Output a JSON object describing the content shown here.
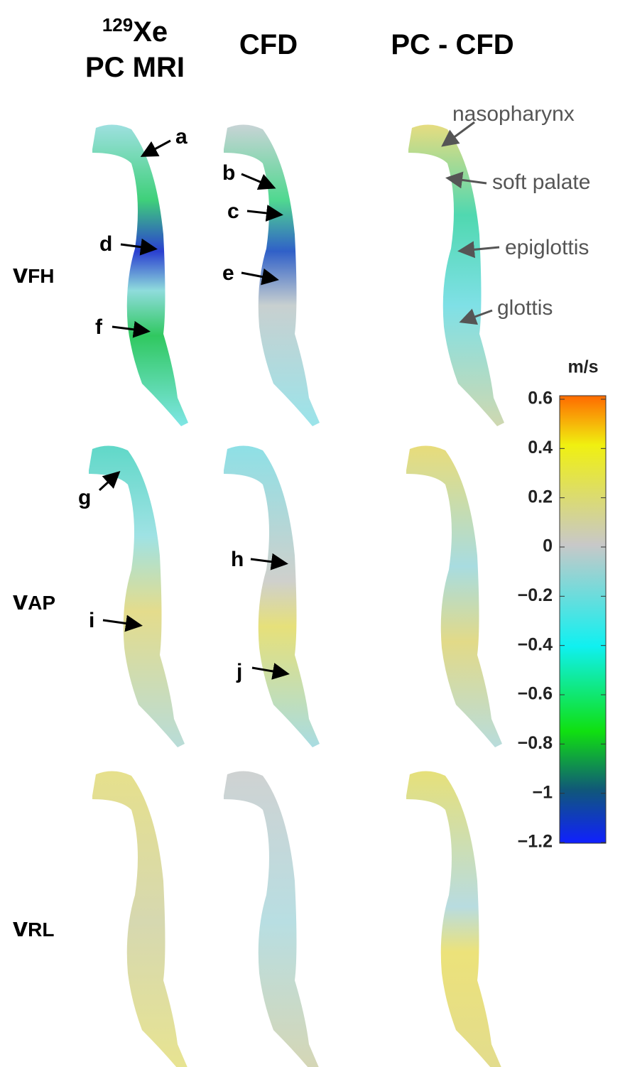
{
  "header": {
    "columns": [
      {
        "superscript": "129",
        "text": "Xe",
        "subtitle": "PC MRI"
      },
      {
        "text": "CFD"
      },
      {
        "text": "PC - CFD"
      }
    ]
  },
  "rows": [
    {
      "main": "v",
      "sub": "FH"
    },
    {
      "main": "v",
      "sub": "AP"
    },
    {
      "main": "v",
      "sub": "RL"
    }
  ],
  "annotations": [
    "a",
    "b",
    "c",
    "d",
    "e",
    "f",
    "g",
    "h",
    "i",
    "j"
  ],
  "anatomy_labels": [
    "nasopharynx",
    "soft palate",
    "epiglottis",
    "glottis"
  ],
  "colorbar": {
    "unit": "m/s",
    "lim": [
      -1.2,
      0.6
    ],
    "ticks": [
      0.6,
      0.4,
      0.2,
      0,
      {
        "value": -0.2,
        "label": "−0.2"
      },
      {
        "value": -0.4,
        "label": "−0.4"
      },
      {
        "value": -0.6,
        "label": "−0.6"
      },
      {
        "value": -0.8,
        "label": "−0.8"
      },
      {
        "value": -1,
        "label": "−1"
      },
      {
        "value": -1.2,
        "label": "−1.2"
      }
    ]
  }
}
